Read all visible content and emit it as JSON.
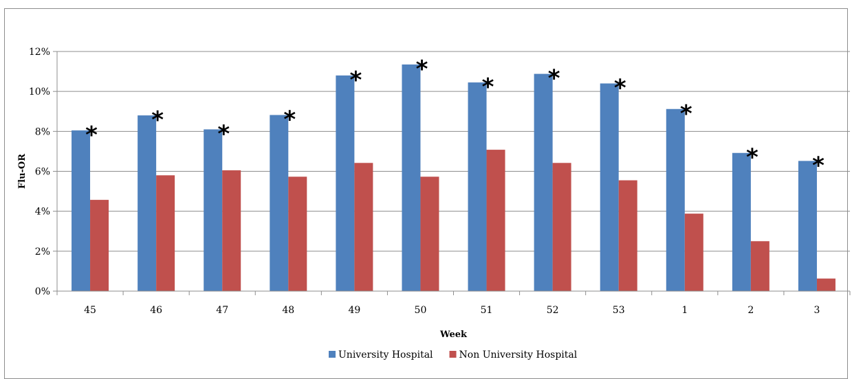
{
  "chart_data": {
    "type": "bar",
    "xlabel": "Week",
    "ylabel": "Flu-OR",
    "categories": [
      "45",
      "46",
      "47",
      "48",
      "49",
      "50",
      "51",
      "52",
      "53",
      "1",
      "2",
      "3"
    ],
    "ylim": [
      0,
      12
    ],
    "yticks": [
      "0%",
      "2%",
      "4%",
      "6%",
      "8%",
      "10%",
      "12%"
    ],
    "y_unit": "%",
    "grid": true,
    "legend_position": "bottom",
    "series": [
      {
        "name": "University Hospital",
        "color": "#4f81bd",
        "values": [
          8.05,
          8.8,
          8.1,
          8.82,
          10.8,
          11.35,
          10.45,
          10.88,
          10.4,
          9.12,
          6.92,
          6.52
        ]
      },
      {
        "name": "Non University Hospital",
        "color": "#c0504d",
        "values": [
          4.57,
          5.8,
          6.05,
          5.73,
          6.42,
          5.73,
          7.08,
          6.42,
          5.55,
          3.88,
          2.5,
          0.63
        ]
      }
    ],
    "annotations": {
      "marker": "*",
      "applies_to_series": "University Hospital",
      "categories": [
        "45",
        "46",
        "47",
        "48",
        "49",
        "50",
        "51",
        "52",
        "53",
        "1",
        "2",
        "3"
      ]
    }
  }
}
